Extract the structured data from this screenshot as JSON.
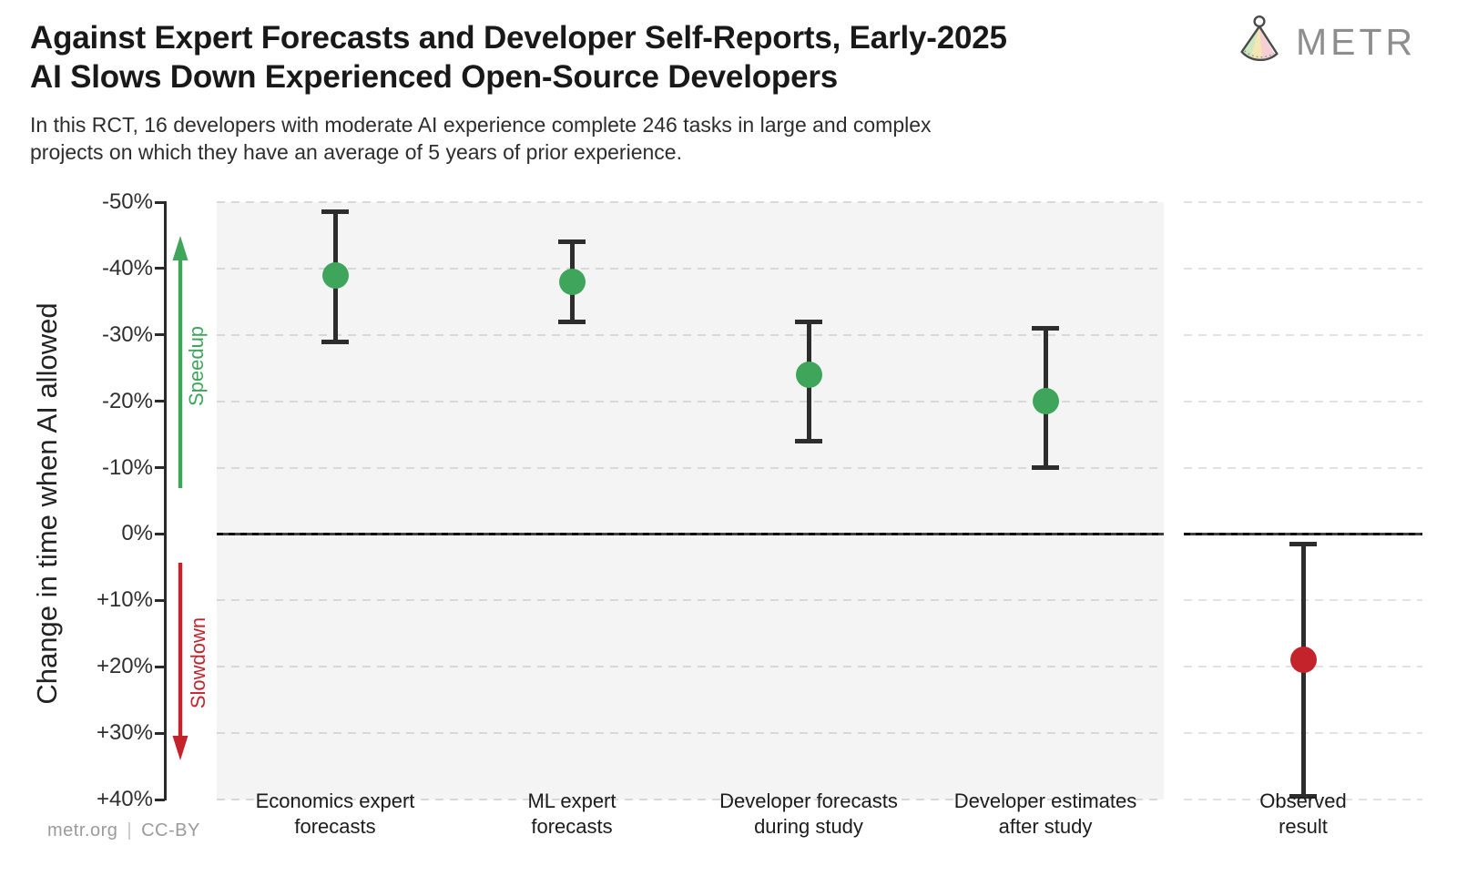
{
  "header": {
    "title_line1": "Against Expert Forecasts and Developer Self-Reports, Early-2025",
    "title_line2": "AI Slows Down Experienced Open-Source Developers",
    "subtitle_line1": "In this RCT, 16 developers with moderate AI experience complete 246 tasks in large and complex",
    "subtitle_line2": "projects on which they have an average of 5 years of prior experience.",
    "brand": "METR"
  },
  "footer": {
    "source": "metr.org",
    "separator": "|",
    "license": "CC-BY"
  },
  "colors": {
    "speedup_green": "#3ea55b",
    "slowdown_red": "#c5232b",
    "errorbar": "#2d2d2d",
    "panel_background": "#f4f4f4",
    "brand_gray": "#8e8e8e"
  },
  "chart_data": {
    "type": "scatter",
    "title": "Against Expert Forecasts and Developer Self-Reports, Early-2025 AI Slows Down Experienced Open-Source Developers",
    "subtitle": "In this RCT, 16 developers with moderate AI experience complete 246 tasks in large and complex projects on which they have an average of 5 years of prior experience.",
    "ylabel": "Change in time when AI allowed",
    "y_axis": {
      "min": -50,
      "max": 40,
      "orientation": "inverted (negative speedup values at top)",
      "grid": "dashed horizontal lines every 10%",
      "ticks": [
        {
          "value": -50,
          "label": "-50%"
        },
        {
          "value": -40,
          "label": "-40%"
        },
        {
          "value": -30,
          "label": "-30%"
        },
        {
          "value": -20,
          "label": "-20%"
        },
        {
          "value": -10,
          "label": "-10%"
        },
        {
          "value": 0,
          "label": "0%"
        },
        {
          "value": 10,
          "label": "+10%"
        },
        {
          "value": 20,
          "label": "+20%"
        },
        {
          "value": 30,
          "label": "+30%"
        },
        {
          "value": 40,
          "label": "+40%"
        }
      ]
    },
    "zero_line_value": 0,
    "annotations": {
      "speedup": {
        "label": "Speedup",
        "direction": "up",
        "color": "#3ea55b"
      },
      "slowdown": {
        "label": "Slowdown",
        "direction": "down",
        "color": "#c5232b"
      }
    },
    "points": [
      {
        "category_line1": "Economics expert",
        "category_line2": "forecasts",
        "value": -39,
        "ci": [
          -48.5,
          -29
        ],
        "color": "#3ea55b",
        "panel": "main"
      },
      {
        "category_line1": "ML expert",
        "category_line2": "forecasts",
        "value": -38,
        "ci": [
          -44,
          -32
        ],
        "color": "#3ea55b",
        "panel": "main"
      },
      {
        "category_line1": "Developer forecasts",
        "category_line2": "during study",
        "value": -24,
        "ci": [
          -32,
          -14
        ],
        "color": "#3ea55b",
        "panel": "main"
      },
      {
        "category_line1": "Developer estimates",
        "category_line2": "after study",
        "value": -20,
        "ci": [
          -31,
          -10
        ],
        "color": "#3ea55b",
        "panel": "main"
      },
      {
        "category_line1": "Observed",
        "category_line2": "result",
        "value": 19,
        "ci": [
          1.5,
          39.5
        ],
        "color": "#c5232b",
        "panel": "right"
      }
    ]
  }
}
